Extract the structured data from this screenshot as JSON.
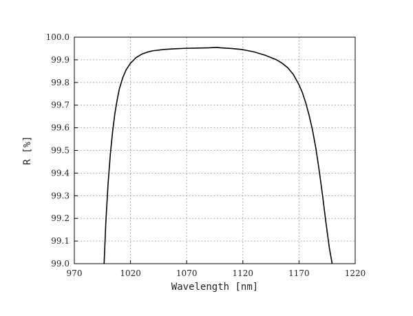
{
  "chart_data": {
    "type": "line",
    "title": "",
    "xlabel": "Wavelength [nm]",
    "ylabel": "R [%]",
    "xlim": [
      970,
      1220
    ],
    "ylim": [
      99.0,
      100.0
    ],
    "xticks": [
      970,
      1020,
      1070,
      1120,
      1170,
      1220
    ],
    "yticks": [
      99.0,
      99.1,
      99.2,
      99.3,
      99.4,
      99.5,
      99.6,
      99.7,
      99.8,
      99.9,
      100.0
    ],
    "xtick_labels": [
      "970",
      "1020",
      "1070",
      "1120",
      "1170",
      "1220"
    ],
    "ytick_labels": [
      "99.0",
      "99.1",
      "99.2",
      "99.3",
      "99.4",
      "99.5",
      "99.6",
      "99.7",
      "99.8",
      "99.9",
      "100.0"
    ],
    "grid": true,
    "legend": "none",
    "line_color": "#000000",
    "series": [
      {
        "x": [
          996.5,
          998,
          1000,
          1002,
          1004,
          1006,
          1008,
          1010,
          1013,
          1016,
          1020,
          1025,
          1030,
          1035,
          1040,
          1050,
          1060,
          1070,
          1080,
          1090,
          1097,
          1100,
          1110,
          1120,
          1130,
          1140,
          1150,
          1155,
          1160,
          1165,
          1170,
          1173,
          1176,
          1179,
          1182,
          1185,
          1188,
          1191,
          1194,
          1197,
          1199.5
        ],
        "y": [
          99.0,
          99.18,
          99.35,
          99.48,
          99.58,
          99.66,
          99.72,
          99.77,
          99.82,
          99.855,
          99.885,
          99.91,
          99.925,
          99.934,
          99.94,
          99.946,
          99.949,
          99.951,
          99.952,
          99.953,
          99.955,
          99.953,
          99.95,
          99.945,
          99.935,
          99.92,
          99.9,
          99.885,
          99.865,
          99.835,
          99.79,
          99.755,
          99.71,
          99.655,
          99.59,
          99.51,
          99.41,
          99.3,
          99.18,
          99.07,
          99.0
        ]
      }
    ]
  }
}
